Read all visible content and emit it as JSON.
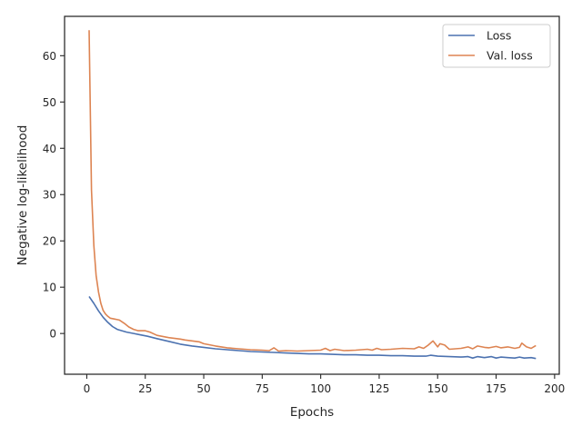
{
  "chart_data": {
    "type": "line",
    "title": "",
    "xlabel": "Epochs",
    "ylabel": "Negative log-likelihood",
    "xlim": [
      -9.5,
      202
    ],
    "ylim": [
      -8.8,
      68.5
    ],
    "xticks": [
      0,
      25,
      50,
      75,
      100,
      125,
      150,
      175,
      200
    ],
    "yticks": [
      0,
      10,
      20,
      30,
      40,
      50,
      60
    ],
    "grid": false,
    "legend_position": "top-right",
    "series": [
      {
        "name": "Loss",
        "color": "#4c72b0",
        "x": [
          1,
          3,
          5,
          7,
          9,
          11,
          13,
          15,
          17,
          20,
          23,
          26,
          30,
          35,
          40,
          45,
          50,
          55,
          60,
          65,
          70,
          75,
          80,
          85,
          90,
          95,
          100,
          105,
          110,
          115,
          120,
          125,
          130,
          135,
          140,
          145,
          147,
          150,
          155,
          160,
          163,
          165,
          167,
          170,
          173,
          175,
          177,
          180,
          183,
          185,
          187,
          190,
          192
        ],
        "y": [
          8.0,
          6.5,
          4.9,
          3.5,
          2.4,
          1.5,
          0.9,
          0.6,
          0.3,
          0.0,
          -0.3,
          -0.6,
          -1.1,
          -1.7,
          -2.3,
          -2.7,
          -3.0,
          -3.3,
          -3.5,
          -3.7,
          -3.9,
          -4.0,
          -4.1,
          -4.2,
          -4.3,
          -4.4,
          -4.4,
          -4.5,
          -4.6,
          -4.6,
          -4.7,
          -4.7,
          -4.8,
          -4.8,
          -4.9,
          -4.9,
          -4.7,
          -4.9,
          -5.0,
          -5.1,
          -5.0,
          -5.3,
          -5.0,
          -5.2,
          -5.0,
          -5.3,
          -5.1,
          -5.2,
          -5.3,
          -5.1,
          -5.3,
          -5.2,
          -5.4
        ]
      },
      {
        "name": "Val. loss",
        "color": "#dd8452",
        "x": [
          1,
          2,
          3,
          4,
          5,
          6,
          7,
          8,
          9,
          10,
          12,
          14,
          16,
          18,
          20,
          22,
          25,
          27,
          30,
          35,
          40,
          42,
          45,
          48,
          50,
          55,
          60,
          65,
          70,
          75,
          78,
          80,
          82,
          85,
          90,
          95,
          100,
          102,
          104,
          106,
          110,
          115,
          120,
          122,
          124,
          126,
          130,
          135,
          140,
          142,
          144,
          146,
          148,
          150,
          151,
          153,
          155,
          160,
          163,
          165,
          167,
          170,
          172,
          175,
          177,
          180,
          183,
          185,
          186,
          188,
          190,
          192
        ],
        "y": [
          65.5,
          31.0,
          19.0,
          12.5,
          9.0,
          6.5,
          5.0,
          4.2,
          3.7,
          3.3,
          3.1,
          2.9,
          2.2,
          1.4,
          0.9,
          0.6,
          0.6,
          0.3,
          -0.4,
          -0.9,
          -1.2,
          -1.4,
          -1.6,
          -1.8,
          -2.2,
          -2.7,
          -3.1,
          -3.3,
          -3.5,
          -3.6,
          -3.7,
          -3.1,
          -3.8,
          -3.7,
          -3.8,
          -3.7,
          -3.6,
          -3.2,
          -3.7,
          -3.4,
          -3.7,
          -3.6,
          -3.4,
          -3.6,
          -3.2,
          -3.5,
          -3.4,
          -3.2,
          -3.3,
          -2.9,
          -3.2,
          -2.5,
          -1.6,
          -2.9,
          -2.2,
          -2.5,
          -3.4,
          -3.2,
          -2.9,
          -3.3,
          -2.7,
          -3.0,
          -3.1,
          -2.8,
          -3.1,
          -2.9,
          -3.2,
          -3.0,
          -2.1,
          -2.9,
          -3.2,
          -2.6
        ]
      }
    ]
  }
}
